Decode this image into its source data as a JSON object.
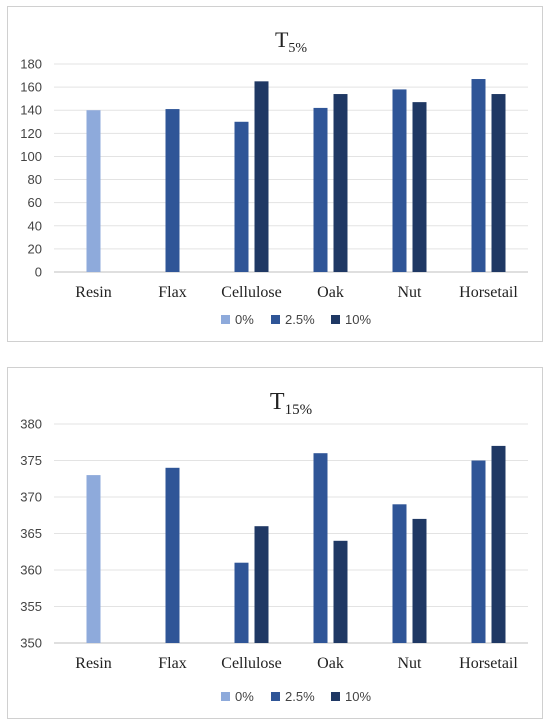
{
  "chart_data": [
    {
      "type": "bar",
      "title": "T",
      "title_sub": "5%",
      "categories": [
        "Resin",
        "Flax",
        "Cellulose",
        "Oak",
        "Nut",
        "Horsetail"
      ],
      "ylim": [
        0,
        180
      ],
      "yticks": [
        0,
        20,
        40,
        60,
        80,
        100,
        120,
        140,
        160,
        180
      ],
      "grid": true,
      "legend_position": "bottom",
      "series": [
        {
          "name": "0%",
          "color": "#8eaadb",
          "values": [
            140,
            null,
            null,
            null,
            null,
            null
          ]
        },
        {
          "name": "2.5%",
          "color": "#2f5597",
          "values": [
            null,
            141,
            130,
            142,
            158,
            167
          ]
        },
        {
          "name": "10%",
          "color": "#1f3864",
          "values": [
            null,
            null,
            165,
            154,
            147,
            154
          ]
        }
      ]
    },
    {
      "type": "bar",
      "title": "T",
      "title_sub": "15%",
      "categories": [
        "Resin",
        "Flax",
        "Cellulose",
        "Oak",
        "Nut",
        "Horsetail"
      ],
      "ylim": [
        350,
        380
      ],
      "yticks": [
        350,
        355,
        360,
        365,
        370,
        375,
        380
      ],
      "grid": true,
      "legend_position": "bottom",
      "series": [
        {
          "name": "0%",
          "color": "#8eaadb",
          "values": [
            373,
            null,
            null,
            null,
            null,
            null
          ]
        },
        {
          "name": "2.5%",
          "color": "#2f5597",
          "values": [
            null,
            374,
            361,
            376,
            369,
            375
          ]
        },
        {
          "name": "10%",
          "color": "#1f3864",
          "values": [
            null,
            null,
            366,
            364,
            367,
            377
          ]
        }
      ]
    }
  ]
}
